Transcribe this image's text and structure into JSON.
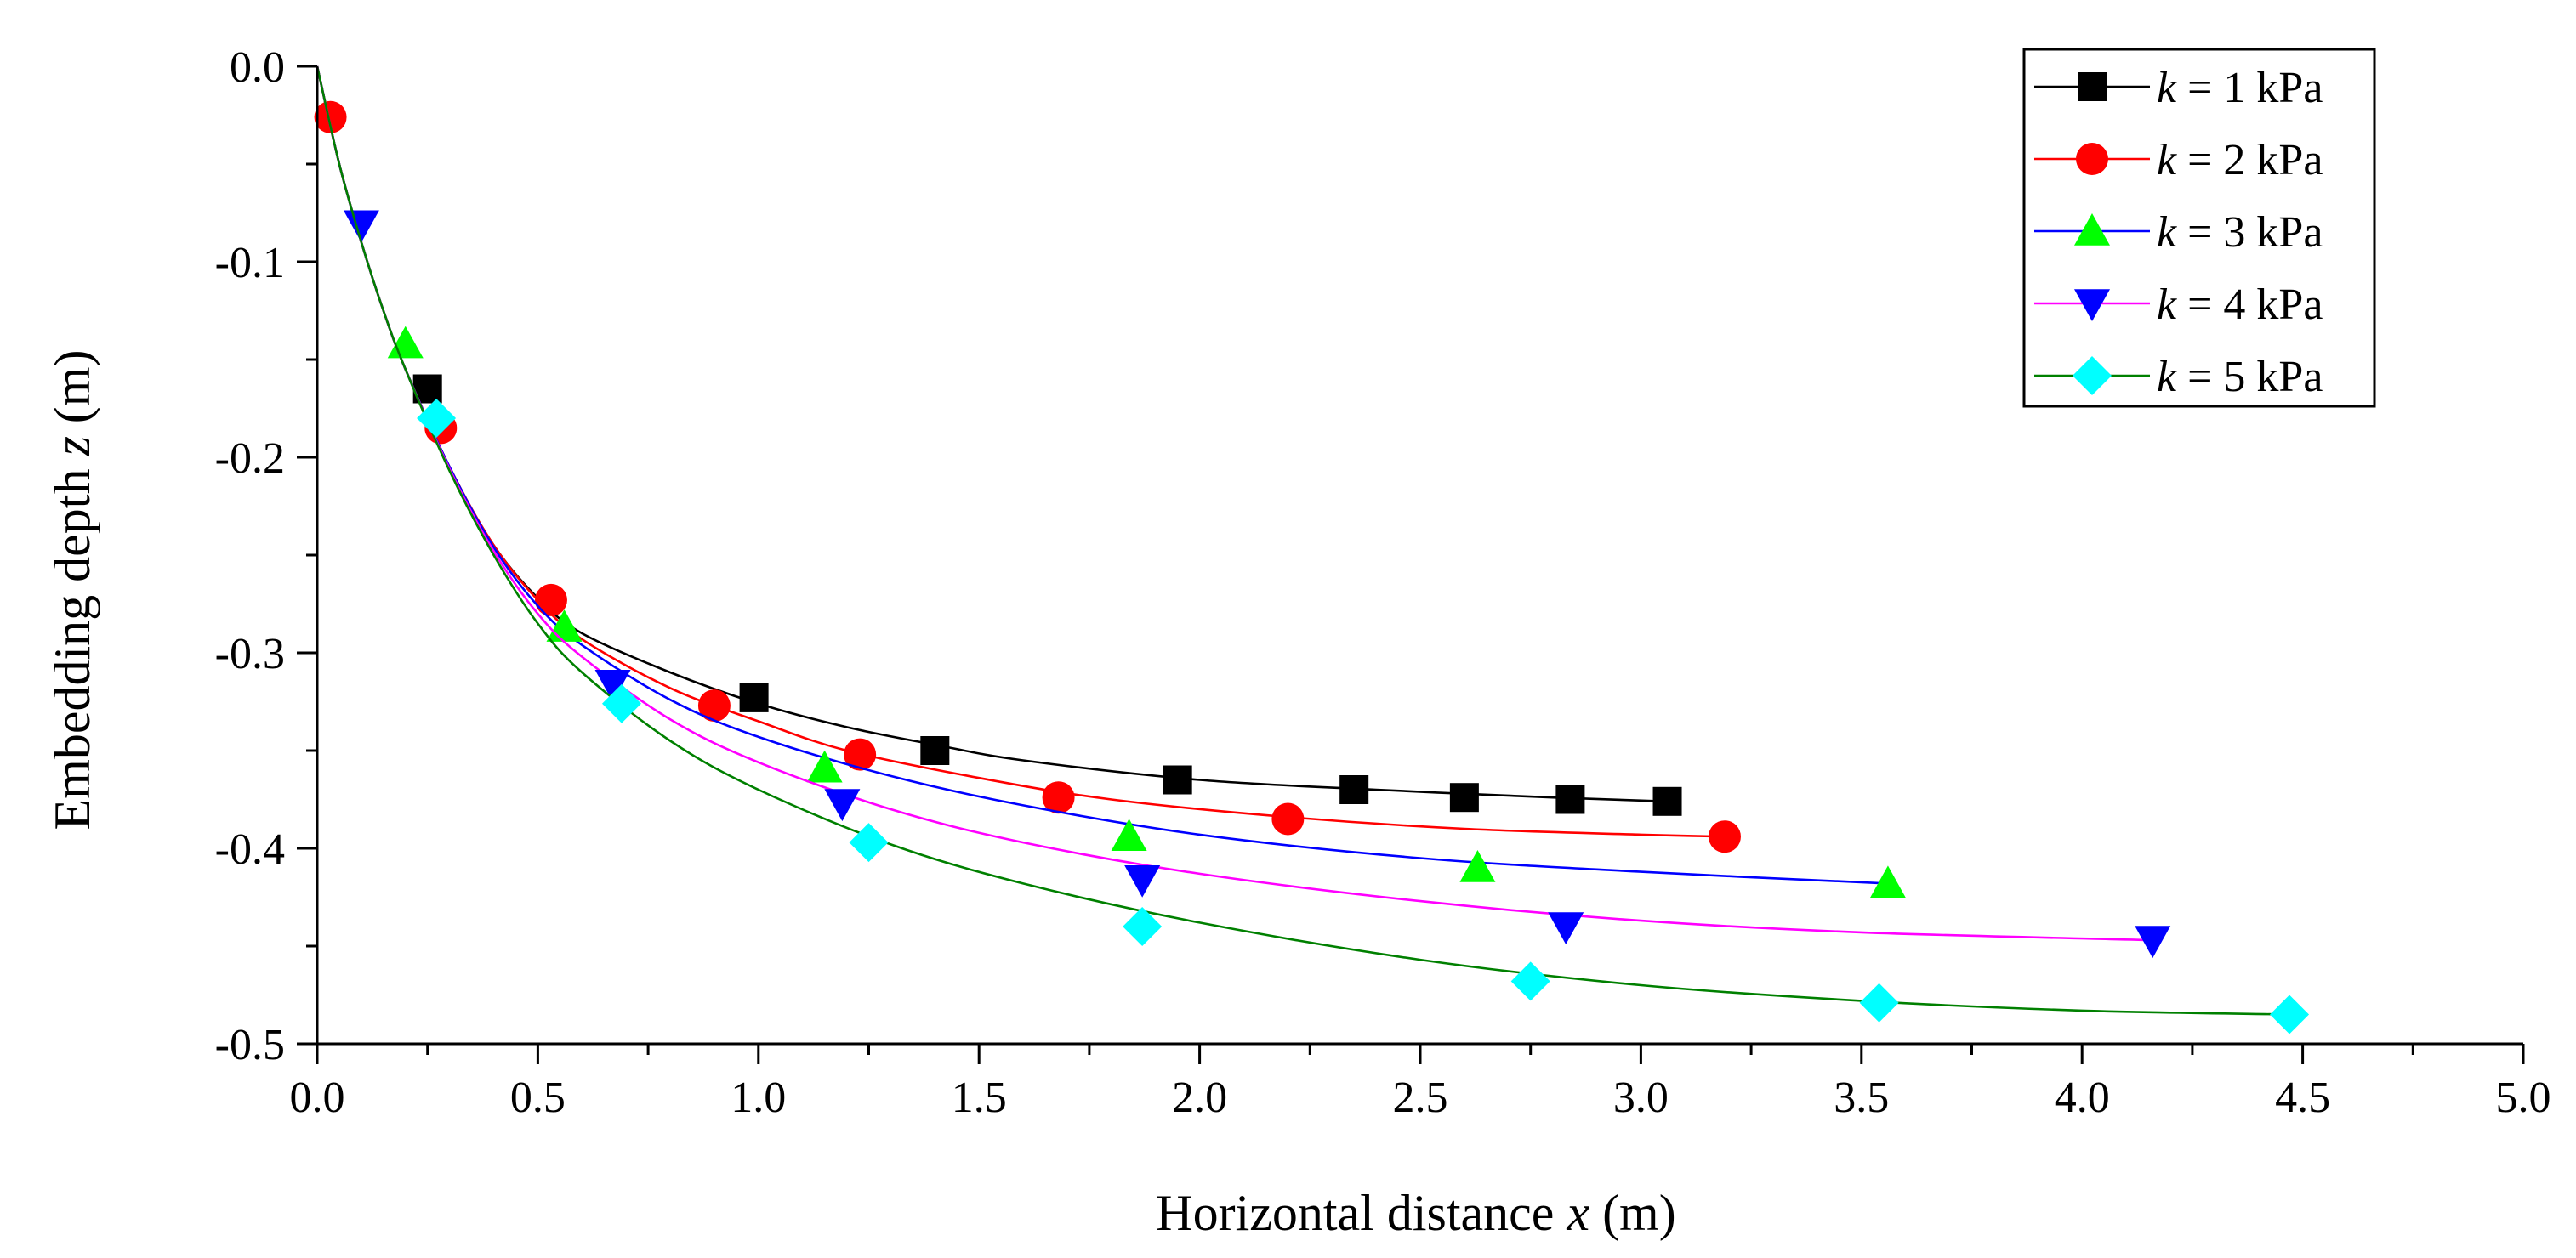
{
  "chart_data": {
    "type": "line",
    "title": "",
    "xlabel": {
      "prefix": "Horizontal distance ",
      "var": "x",
      "suffix": " (m)"
    },
    "ylabel": {
      "prefix": "Embedding depth ",
      "var": "z",
      "suffix": " (m)"
    },
    "xlim": [
      0,
      5
    ],
    "ylim": [
      -0.5,
      0
    ],
    "xticks": [
      0.0,
      0.5,
      1.0,
      1.5,
      2.0,
      2.5,
      3.0,
      3.5,
      4.0,
      4.5,
      5.0
    ],
    "xtick_labels": [
      "0.0",
      "0.5",
      "1.0",
      "1.5",
      "2.0",
      "2.5",
      "3.0",
      "3.5",
      "4.0",
      "4.5",
      "5.0"
    ],
    "yticks": [
      0.0,
      -0.1,
      -0.2,
      -0.3,
      -0.4,
      -0.5
    ],
    "ytick_labels": [
      "0.0",
      "-0.1",
      "-0.2",
      "-0.3",
      "-0.4",
      "-0.5"
    ],
    "grid": false,
    "legend_position": "top-right",
    "series": [
      {
        "name": "k = 1 kPa",
        "legend_var": "k",
        "legend_rest": " = 1 kPa",
        "color": "#000000",
        "marker": "square",
        "marker_color": "#000000",
        "curve": {
          "x": [
            0,
            0.05,
            0.1,
            0.15,
            0.2,
            0.3,
            0.4,
            0.5,
            0.6,
            0.8,
            1.0,
            1.2,
            1.4,
            1.6,
            2.0,
            2.4,
            2.8,
            3.06
          ],
          "y": [
            0,
            -0.05,
            -0.09,
            -0.125,
            -0.155,
            -0.205,
            -0.245,
            -0.272,
            -0.29,
            -0.31,
            -0.326,
            -0.338,
            -0.347,
            -0.355,
            -0.365,
            -0.37,
            -0.374,
            -0.376
          ]
        },
        "points": {
          "x": [
            0.25,
            0.99,
            1.4,
            1.95,
            2.35,
            2.6,
            2.84,
            3.06
          ],
          "y": [
            -0.165,
            -0.323,
            -0.35,
            -0.365,
            -0.37,
            -0.374,
            -0.375,
            -0.376
          ]
        }
      },
      {
        "name": "k = 2 kPa",
        "legend_var": "k",
        "legend_rest": " = 2 kPa",
        "color": "#ff0000",
        "marker": "circle",
        "marker_color": "#ff0000",
        "curve": {
          "x": [
            0,
            0.05,
            0.1,
            0.15,
            0.2,
            0.3,
            0.4,
            0.5,
            0.6,
            0.8,
            1.0,
            1.2,
            1.5,
            1.8,
            2.2,
            2.6,
            3.0,
            3.19
          ],
          "y": [
            0,
            -0.05,
            -0.09,
            -0.125,
            -0.155,
            -0.205,
            -0.245,
            -0.273,
            -0.293,
            -0.318,
            -0.335,
            -0.35,
            -0.364,
            -0.375,
            -0.384,
            -0.39,
            -0.393,
            -0.394
          ]
        },
        "points": {
          "x": [
            0.03,
            0.28,
            0.53,
            0.9,
            1.23,
            1.68,
            2.2,
            3.19
          ],
          "y": [
            -0.026,
            -0.185,
            -0.273,
            -0.327,
            -0.352,
            -0.374,
            -0.385,
            -0.394
          ]
        }
      },
      {
        "name": "k = 3 kPa",
        "legend_var": "k",
        "legend_rest": " = 3 kPa",
        "color": "#0000ff",
        "marker": "triangle-up",
        "marker_color": "#00ff00",
        "curve": {
          "x": [
            0,
            0.05,
            0.1,
            0.15,
            0.2,
            0.3,
            0.4,
            0.5,
            0.6,
            0.8,
            1.0,
            1.3,
            1.6,
            2.0,
            2.5,
            3.0,
            3.56
          ],
          "y": [
            0,
            -0.05,
            -0.09,
            -0.125,
            -0.155,
            -0.205,
            -0.246,
            -0.276,
            -0.296,
            -0.324,
            -0.343,
            -0.363,
            -0.378,
            -0.393,
            -0.405,
            -0.412,
            -0.418
          ]
        },
        "points": {
          "x": [
            0.2,
            0.56,
            1.15,
            1.84,
            2.63,
            3.56
          ],
          "y": [
            -0.142,
            -0.287,
            -0.359,
            -0.394,
            -0.41,
            -0.418
          ]
        }
      },
      {
        "name": "k = 4 kPa",
        "legend_var": "k",
        "legend_rest": " = 4 kPa",
        "color": "#ff00ff",
        "marker": "triangle-down",
        "marker_color": "#0000ff",
        "curve": {
          "x": [
            0,
            0.05,
            0.1,
            0.15,
            0.2,
            0.3,
            0.4,
            0.5,
            0.6,
            0.8,
            1.0,
            1.3,
            1.6,
            2.0,
            2.5,
            3.0,
            3.5,
            4.16
          ],
          "y": [
            0,
            -0.05,
            -0.09,
            -0.125,
            -0.155,
            -0.206,
            -0.248,
            -0.28,
            -0.302,
            -0.334,
            -0.356,
            -0.38,
            -0.397,
            -0.413,
            -0.427,
            -0.437,
            -0.443,
            -0.447
          ]
        },
        "points": {
          "x": [
            0.1,
            0.67,
            1.19,
            1.87,
            2.83,
            4.16
          ],
          "y": [
            -0.081,
            -0.316,
            -0.377,
            -0.416,
            -0.44,
            -0.447
          ]
        }
      },
      {
        "name": "k = 5 kPa",
        "legend_var": "k",
        "legend_rest": " = 5 kPa",
        "color": "#008000",
        "marker": "diamond",
        "marker_color": "#00ffff",
        "curve": {
          "x": [
            0,
            0.05,
            0.1,
            0.15,
            0.2,
            0.3,
            0.4,
            0.5,
            0.6,
            0.8,
            1.0,
            1.3,
            1.6,
            2.0,
            2.5,
            3.0,
            3.5,
            4.0,
            4.47
          ],
          "y": [
            0,
            -0.05,
            -0.09,
            -0.125,
            -0.155,
            -0.207,
            -0.25,
            -0.285,
            -0.31,
            -0.345,
            -0.37,
            -0.398,
            -0.418,
            -0.438,
            -0.457,
            -0.47,
            -0.478,
            -0.483,
            -0.485
          ]
        },
        "points": {
          "x": [
            0.27,
            0.69,
            1.25,
            1.87,
            2.75,
            3.54,
            4.47
          ],
          "y": [
            -0.18,
            -0.326,
            -0.397,
            -0.44,
            -0.468,
            -0.479,
            -0.485
          ]
        }
      }
    ]
  }
}
